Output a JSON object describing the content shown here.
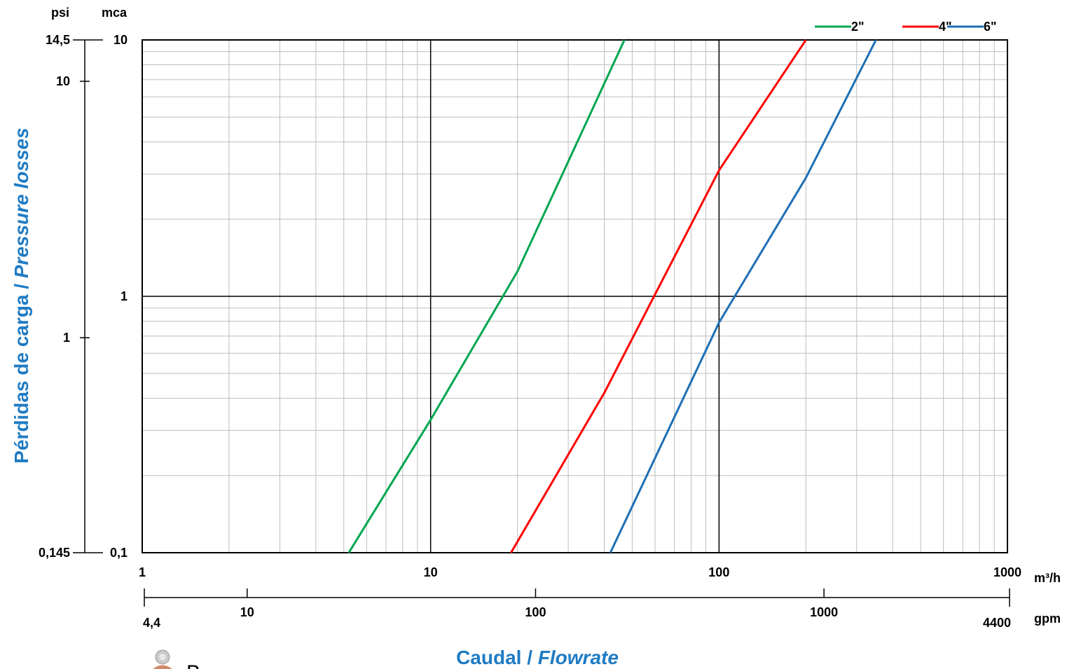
{
  "chart_data": {
    "type": "line",
    "title": "",
    "xlabel": {
      "main": "Caudal / ",
      "italic": "Flowrate"
    },
    "ylabel": {
      "main": "Pérdidas de carga / ",
      "italic": "Pressure losses"
    },
    "x_scale": "log",
    "y_scale": "log",
    "xlim": [
      1,
      1000
    ],
    "ylim": [
      0.1,
      10
    ],
    "x_unit": "m³/h",
    "y_unit": "mca",
    "x_ticks": [
      "1",
      "10",
      "100",
      "1000"
    ],
    "y_ticks": [
      "0,1",
      "1",
      "10"
    ],
    "secondary_x": {
      "unit": "gpm",
      "range": [
        4.4,
        4400
      ],
      "ticks": [
        "4,4",
        "10",
        "100",
        "1000",
        "4400"
      ]
    },
    "secondary_y": {
      "unit": "psi",
      "range": [
        0.145,
        14.5
      ],
      "ticks": [
        "0,145",
        "1",
        "10",
        "14,5"
      ]
    },
    "grid": true,
    "legend_position": "top-right",
    "series": [
      {
        "name": "2\"",
        "color": "#00A650",
        "x": [
          5.2,
          10,
          20,
          47
        ],
        "y": [
          0.1,
          0.33,
          1.25,
          10
        ]
      },
      {
        "name": "4\"",
        "color": "#FF0000",
        "x": [
          19,
          40,
          100,
          200
        ],
        "y": [
          0.1,
          0.42,
          3.1,
          10
        ]
      },
      {
        "name": "6\"",
        "color": "#1E6FB5",
        "x": [
          42,
          100,
          200,
          350
        ],
        "y": [
          0.1,
          0.79,
          2.9,
          10
        ]
      }
    ]
  },
  "footer": {
    "watermark_letter": "B"
  }
}
